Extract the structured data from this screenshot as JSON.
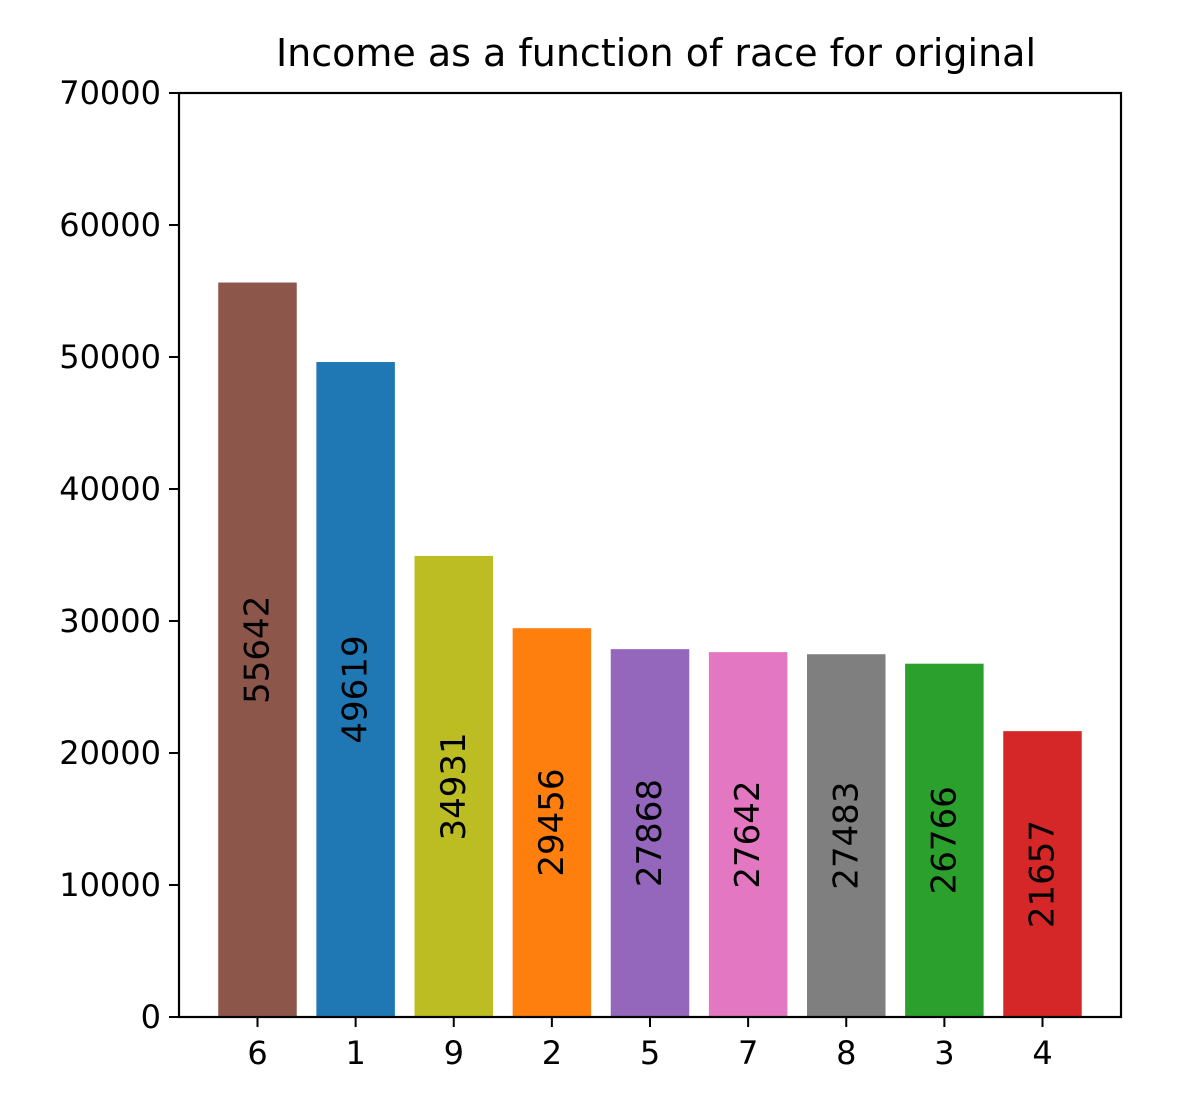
{
  "chart_data": {
    "type": "bar",
    "title": "Income as a function of race for original",
    "xlabel": "",
    "ylabel": "",
    "categories": [
      "6",
      "1",
      "9",
      "2",
      "5",
      "7",
      "8",
      "3",
      "4"
    ],
    "values": [
      55642,
      49619,
      34931,
      29456,
      27868,
      27642,
      27483,
      26766,
      21657
    ],
    "data_labels": [
      "55642",
      "49619",
      "34931",
      "29456",
      "27868",
      "27642",
      "27483",
      "26766",
      "21657"
    ],
    "colors": [
      "#8c564b",
      "#1f77b4",
      "#bcbd22",
      "#ff7f0e",
      "#9467bd",
      "#e377c2",
      "#7f7f7f",
      "#2ca02c",
      "#d62728"
    ],
    "ylim": [
      0,
      70000
    ],
    "yticks": [
      0,
      10000,
      20000,
      30000,
      40000,
      50000,
      60000,
      70000
    ],
    "ytick_labels": [
      "0",
      "10000",
      "20000",
      "30000",
      "40000",
      "50000",
      "60000",
      "70000"
    ],
    "grid": false,
    "legend": "none"
  }
}
